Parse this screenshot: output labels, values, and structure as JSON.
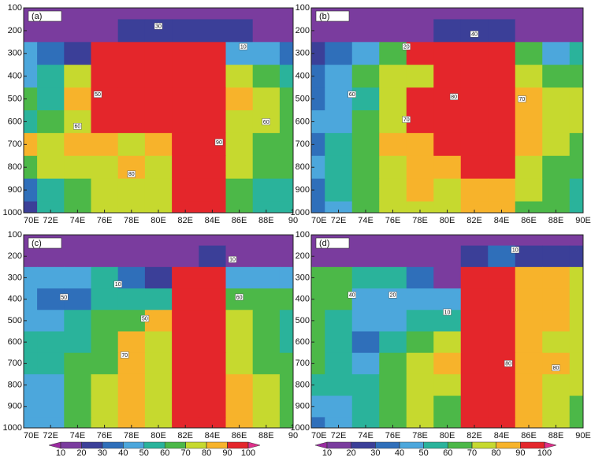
{
  "colorbar": {
    "levels": [
      10,
      20,
      30,
      40,
      50,
      60,
      70,
      80,
      90,
      100
    ],
    "colors": [
      "#9a2aa0",
      "#7a3c9e",
      "#3b3f98",
      "#2f6fba",
      "#4ca7dc",
      "#2ab39b",
      "#4cb848",
      "#c6d92f",
      "#f7b32b",
      "#e4262b",
      "#e0308a"
    ]
  },
  "chart_data": [
    {
      "type": "contour",
      "label": "(a)",
      "x": [
        70,
        72,
        74,
        76,
        78,
        80,
        82,
        84,
        86,
        88,
        90
      ],
      "y": [
        100,
        200,
        300,
        400,
        500,
        600,
        700,
        800,
        900,
        1000
      ],
      "z": [
        [
          10,
          10,
          10,
          10,
          10,
          10,
          10,
          10,
          10,
          10,
          10
        ],
        [
          10,
          10,
          10,
          10,
          20,
          20,
          20,
          20,
          20,
          10,
          10
        ],
        [
          40,
          30,
          20,
          90,
          90,
          90,
          90,
          90,
          40,
          40,
          30
        ],
        [
          40,
          50,
          70,
          90,
          90,
          90,
          90,
          90,
          70,
          60,
          50
        ],
        [
          60,
          50,
          80,
          90,
          90,
          90,
          90,
          90,
          80,
          70,
          60
        ],
        [
          50,
          60,
          70,
          90,
          90,
          90,
          90,
          90,
          70,
          70,
          60
        ],
        [
          80,
          70,
          80,
          80,
          70,
          80,
          90,
          90,
          70,
          60,
          60
        ],
        [
          60,
          70,
          70,
          70,
          80,
          70,
          90,
          90,
          70,
          60,
          60
        ],
        [
          30,
          50,
          60,
          70,
          70,
          70,
          90,
          90,
          60,
          50,
          50
        ],
        [
          20,
          50,
          60,
          70,
          70,
          70,
          90,
          90,
          60,
          50,
          50
        ]
      ],
      "xlim": [
        70,
        90
      ],
      "ylim": [
        1000,
        100
      ],
      "xticks": [
        {
          "value": 70,
          "label": "70E"
        },
        {
          "value": 72,
          "label": "72E"
        },
        {
          "value": 74,
          "label": "74E"
        },
        {
          "value": 76,
          "label": "76E"
        },
        {
          "value": 78,
          "label": "78E"
        },
        {
          "value": 80,
          "label": "80E"
        },
        {
          "value": 82,
          "label": "82E"
        },
        {
          "value": 84,
          "label": "84E"
        },
        {
          "value": 86,
          "label": "86E"
        },
        {
          "value": 88,
          "label": "88E"
        },
        {
          "value": 90,
          "label": "90"
        }
      ],
      "yticks": [
        100,
        200,
        300,
        400,
        500,
        600,
        700,
        800,
        900,
        1000
      ],
      "contour_labels": [
        {
          "x": 80,
          "y": 180,
          "value": 30
        },
        {
          "x": 75.5,
          "y": 480,
          "value": 50
        },
        {
          "x": 84.5,
          "y": 690,
          "value": 90
        },
        {
          "x": 78,
          "y": 830,
          "value": 80
        },
        {
          "x": 74,
          "y": 620,
          "value": 60
        },
        {
          "x": 86.3,
          "y": 270,
          "value": 10
        },
        {
          "x": 88,
          "y": 600,
          "value": 60
        }
      ]
    },
    {
      "type": "contour",
      "label": "(b)",
      "x": [
        70,
        72,
        74,
        76,
        78,
        80,
        82,
        84,
        86,
        88,
        90
      ],
      "y": [
        100,
        200,
        300,
        400,
        500,
        600,
        700,
        800,
        900,
        1000
      ],
      "z": [
        [
          10,
          10,
          10,
          10,
          10,
          10,
          10,
          10,
          10,
          10,
          10
        ],
        [
          10,
          10,
          10,
          10,
          10,
          20,
          20,
          20,
          10,
          10,
          10
        ],
        [
          20,
          30,
          40,
          60,
          90,
          90,
          90,
          90,
          60,
          40,
          50
        ],
        [
          30,
          40,
          60,
          70,
          70,
          90,
          90,
          90,
          70,
          60,
          60
        ],
        [
          30,
          40,
          50,
          70,
          90,
          90,
          90,
          90,
          80,
          70,
          70
        ],
        [
          40,
          40,
          60,
          70,
          90,
          90,
          90,
          90,
          80,
          70,
          70
        ],
        [
          30,
          50,
          60,
          80,
          80,
          90,
          90,
          90,
          80,
          70,
          60
        ],
        [
          40,
          50,
          60,
          70,
          80,
          80,
          90,
          90,
          70,
          60,
          60
        ],
        [
          30,
          50,
          60,
          70,
          80,
          70,
          80,
          80,
          70,
          60,
          50
        ],
        [
          30,
          40,
          60,
          70,
          70,
          70,
          80,
          80,
          60,
          60,
          50
        ]
      ],
      "xlim": [
        70,
        90
      ],
      "ylim": [
        1000,
        100
      ],
      "xticks": [
        {
          "value": 70,
          "label": "70E"
        },
        {
          "value": 72,
          "label": "72E"
        },
        {
          "value": 74,
          "label": "74E"
        },
        {
          "value": 76,
          "label": "76E"
        },
        {
          "value": 78,
          "label": "78E"
        },
        {
          "value": 80,
          "label": "80E"
        },
        {
          "value": 82,
          "label": "82E"
        },
        {
          "value": 84,
          "label": "84E"
        },
        {
          "value": 86,
          "label": "86E"
        },
        {
          "value": 88,
          "label": "88E"
        },
        {
          "value": 90,
          "label": "90E"
        }
      ],
      "yticks": [
        100,
        200,
        300,
        400,
        500,
        600,
        700,
        800,
        900,
        1000
      ],
      "contour_labels": [
        {
          "x": 82,
          "y": 215,
          "value": 40
        },
        {
          "x": 77,
          "y": 270,
          "value": 20
        },
        {
          "x": 80.5,
          "y": 490,
          "value": 80
        },
        {
          "x": 77,
          "y": 590,
          "value": 70
        },
        {
          "x": 85.5,
          "y": 500,
          "value": 70
        },
        {
          "x": 73,
          "y": 480,
          "value": 60
        }
      ]
    },
    {
      "type": "contour",
      "label": "(c)",
      "x": [
        70,
        72,
        74,
        76,
        78,
        80,
        82,
        84,
        86,
        88,
        90
      ],
      "y": [
        100,
        200,
        300,
        400,
        500,
        600,
        700,
        800,
        900,
        1000
      ],
      "z": [
        [
          10,
          10,
          10,
          10,
          10,
          10,
          10,
          10,
          10,
          10,
          10
        ],
        [
          10,
          10,
          10,
          10,
          10,
          10,
          10,
          20,
          10,
          10,
          10
        ],
        [
          40,
          40,
          40,
          50,
          30,
          20,
          90,
          90,
          40,
          40,
          40
        ],
        [
          40,
          30,
          30,
          50,
          50,
          50,
          90,
          90,
          60,
          60,
          60
        ],
        [
          40,
          40,
          50,
          60,
          60,
          80,
          90,
          90,
          70,
          60,
          50
        ],
        [
          50,
          50,
          50,
          60,
          80,
          70,
          90,
          90,
          70,
          60,
          50
        ],
        [
          50,
          50,
          60,
          60,
          80,
          70,
          90,
          90,
          70,
          60,
          60
        ],
        [
          40,
          40,
          60,
          70,
          80,
          70,
          90,
          90,
          80,
          70,
          60
        ],
        [
          40,
          40,
          60,
          70,
          80,
          70,
          90,
          90,
          80,
          70,
          60
        ],
        [
          40,
          40,
          60,
          70,
          80,
          70,
          90,
          90,
          80,
          70,
          60
        ]
      ],
      "xlim": [
        70,
        90
      ],
      "ylim": [
        1000,
        100
      ],
      "xticks": [
        {
          "value": 70,
          "label": "70E"
        },
        {
          "value": 72,
          "label": "72E"
        },
        {
          "value": 74,
          "label": "74E"
        },
        {
          "value": 76,
          "label": "76E"
        },
        {
          "value": 78,
          "label": "78E"
        },
        {
          "value": 80,
          "label": "80E"
        },
        {
          "value": 82,
          "label": "82E"
        },
        {
          "value": 84,
          "label": "84E"
        },
        {
          "value": 86,
          "label": "86E"
        },
        {
          "value": 88,
          "label": "88E"
        },
        {
          "value": 90,
          "label": "90"
        }
      ],
      "yticks": [
        100,
        200,
        300,
        400,
        500,
        600,
        700,
        800,
        900,
        1000
      ],
      "contour_labels": [
        {
          "x": 85.5,
          "y": 215,
          "value": 10
        },
        {
          "x": 77,
          "y": 330,
          "value": 10
        },
        {
          "x": 73,
          "y": 390,
          "value": 50
        },
        {
          "x": 79,
          "y": 490,
          "value": 50
        },
        {
          "x": 77.5,
          "y": 660,
          "value": 70
        },
        {
          "x": 86,
          "y": 390,
          "value": 60
        }
      ]
    },
    {
      "type": "contour",
      "label": "(d)",
      "x": [
        70,
        72,
        74,
        76,
        78,
        80,
        82,
        84,
        86,
        88,
        90
      ],
      "y": [
        100,
        200,
        300,
        400,
        500,
        600,
        700,
        800,
        900,
        1000
      ],
      "z": [
        [
          10,
          10,
          10,
          10,
          10,
          10,
          10,
          10,
          10,
          10,
          10
        ],
        [
          10,
          10,
          10,
          10,
          10,
          10,
          20,
          30,
          20,
          20,
          20
        ],
        [
          60,
          60,
          50,
          50,
          30,
          10,
          90,
          90,
          80,
          80,
          70
        ],
        [
          60,
          60,
          40,
          40,
          40,
          40,
          90,
          90,
          80,
          80,
          70
        ],
        [
          60,
          50,
          40,
          40,
          50,
          50,
          90,
          90,
          80,
          80,
          70
        ],
        [
          60,
          50,
          30,
          50,
          60,
          70,
          90,
          90,
          80,
          70,
          70
        ],
        [
          60,
          50,
          40,
          60,
          70,
          80,
          90,
          90,
          80,
          80,
          70
        ],
        [
          50,
          50,
          50,
          60,
          70,
          70,
          90,
          90,
          80,
          70,
          70
        ],
        [
          40,
          40,
          50,
          60,
          70,
          60,
          90,
          90,
          80,
          70,
          60
        ],
        [
          30,
          40,
          50,
          60,
          70,
          60,
          90,
          90,
          80,
          70,
          60
        ]
      ],
      "xlim": [
        70,
        90
      ],
      "ylim": [
        1000,
        100
      ],
      "xticks": [
        {
          "value": 70,
          "label": "70E"
        },
        {
          "value": 72,
          "label": "72E"
        },
        {
          "value": 74,
          "label": "74E"
        },
        {
          "value": 76,
          "label": "76E"
        },
        {
          "value": 78,
          "label": "78E"
        },
        {
          "value": 80,
          "label": "80E"
        },
        {
          "value": 82,
          "label": "82E"
        },
        {
          "value": 84,
          "label": "84E"
        },
        {
          "value": 86,
          "label": "86E"
        },
        {
          "value": 88,
          "label": "88E"
        },
        {
          "value": 90,
          "label": "90E"
        }
      ],
      "yticks": [
        100,
        200,
        300,
        400,
        500,
        600,
        700,
        800,
        900,
        1000
      ],
      "contour_labels": [
        {
          "x": 85,
          "y": 170,
          "value": 10
        },
        {
          "x": 76,
          "y": 380,
          "value": 20
        },
        {
          "x": 73,
          "y": 380,
          "value": 40
        },
        {
          "x": 80,
          "y": 460,
          "value": 10
        },
        {
          "x": 84.5,
          "y": 700,
          "value": 80
        },
        {
          "x": 88,
          "y": 720,
          "value": 80
        }
      ]
    }
  ]
}
